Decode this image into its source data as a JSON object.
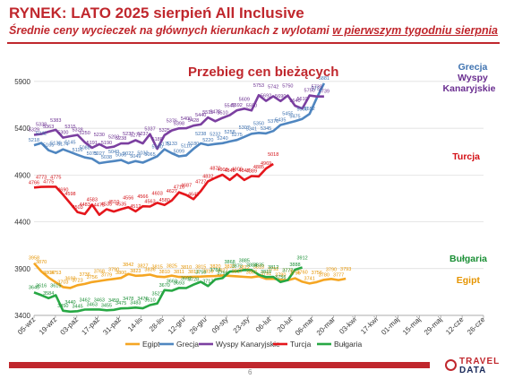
{
  "header": {
    "title": "RYNEK: LATO 2025 sierpień All Inclusive",
    "subtitle_main": "Średnie ceny wycieczek na głównych kierunkach z wylotami ",
    "subtitle_underlined": "w pierwszym tygodniu sierpnia"
  },
  "footer": {
    "page_number": "6",
    "logo_line1": "TRAVEL",
    "logo_line2": "DATA"
  },
  "chart_data": {
    "type": "line",
    "title": "Przebieg cen bieżących",
    "ylim": [
      3400,
      6100
    ],
    "yticks": [
      3400,
      3900,
      4400,
      4900,
      5400,
      5900
    ],
    "xticks": [
      "05-wrz",
      "19-wrz",
      "03-paź",
      "17-paź",
      "31-paź",
      "14-lis",
      "28-lis",
      "12-gru",
      "26-gru",
      "09-sty",
      "23-sty",
      "06-lut",
      "20-lut",
      "06-mar",
      "20-mar",
      "03-kwi",
      "17-kwi",
      "01-maj",
      "15-maj",
      "29-maj",
      "12-cze",
      "26-cze"
    ],
    "legend_position": "bottom",
    "series": [
      {
        "name": "Egipt",
        "color": "#f5a623",
        "label_color": "#e59400",
        "values": [
          3958,
          3870,
          3804,
          3753,
          3703,
          3693,
          3723,
          3736,
          3756,
          3768,
          3779,
          3790,
          3800,
          3842,
          3823,
          3827,
          3836,
          3815,
          3810,
          3825,
          3811,
          3810,
          3813,
          3815,
          3818,
          3820,
          3827,
          3822,
          3817,
          3812,
          3807,
          3818,
          3791,
          3792,
          3780,
          3776,
          3796,
          3760,
          3741,
          3756,
          3780,
          3790,
          3777,
          3793
        ]
      },
      {
        "name": "Grecja",
        "color": "#4f86c0",
        "label_color": "#3e72b0",
        "values": [
          5218,
          5242,
          5165,
          5136,
          5174,
          5145,
          5116,
          5088,
          5075,
          5027,
          5038,
          5049,
          5060,
          5027,
          5049,
          5032,
          5065,
          5100,
          5175,
          5133,
          5099,
          5110,
          5180,
          5238,
          5220,
          5232,
          5240,
          5258,
          5275,
          5307,
          5341,
          5350,
          5345,
          5370,
          5435,
          5455,
          5475,
          5500,
          5552,
          5724,
          5881
        ]
      },
      {
        "name": "Wyspy Kanaryjskie",
        "color": "#7b3fa0",
        "label_color": "#6a2e90",
        "values": [
          5329,
          5338,
          5363,
          5383,
          5300,
          5315,
          5328,
          5250,
          5191,
          5230,
          5190,
          5203,
          5238,
          5237,
          5272,
          5237,
          5337,
          5180,
          5325,
          5376,
          5398,
          5400,
          5428,
          5440,
          5515,
          5475,
          5510,
          5540,
          5592,
          5609,
          5590,
          5753,
          5692,
          5742,
          5690,
          5750,
          5640,
          5610,
          5750,
          5739,
          5739
        ]
      },
      {
        "name": "Turcja",
        "color": "#e5161c",
        "label_color": "#d41016",
        "values": [
          4766,
          4773,
          4775,
          4775,
          4690,
          4598,
          4503,
          4483,
          4583,
          4475,
          4535,
          4510,
          4535,
          4556,
          4512,
          4566,
          4563,
          4603,
          4580,
          4627,
          4716,
          4687,
          4642,
          4727,
          4832,
          4870,
          4903,
          4848,
          4909,
          4847,
          4889,
          4885,
          4969,
          5018
        ]
      },
      {
        "name": "Bułgaria",
        "color": "#27a844",
        "label_color": "#1a8f35",
        "values": [
          3645,
          3616,
          3584,
          3615,
          3450,
          3440,
          3445,
          3462,
          3463,
          3463,
          3455,
          3459,
          3475,
          3478,
          3483,
          3476,
          3510,
          3527,
          3670,
          3663,
          3693,
          3692,
          3728,
          3759,
          3713,
          3784,
          3798,
          3868,
          3872,
          3885,
          3884,
          3835,
          3810,
          3812,
          3756,
          3777,
          3888,
          3912
        ]
      }
    ],
    "right_labels": [
      {
        "text": "Grecja",
        "series": "Grecja"
      },
      {
        "text": "Wyspy",
        "series": "Wyspy Kanaryjskie"
      },
      {
        "text": "Kanaryjskie",
        "series": "Wyspy Kanaryjskie"
      },
      {
        "text": "Turcja",
        "series": "Turcja"
      },
      {
        "text": "Bułgaria",
        "series": "Bułgaria"
      },
      {
        "text": "Egipt",
        "series": "Egipt"
      }
    ]
  }
}
